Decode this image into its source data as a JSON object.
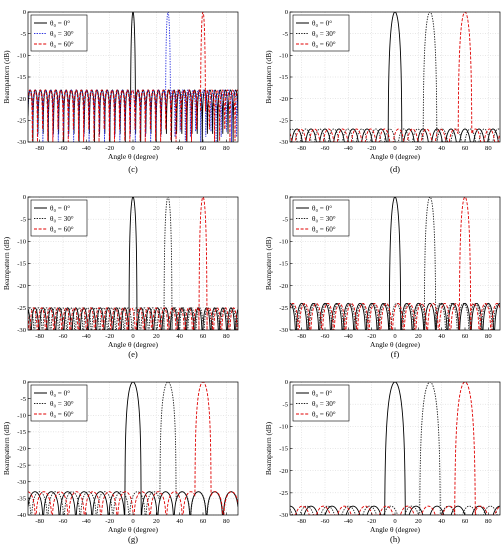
{
  "figure_title": "",
  "colors": {
    "s0": "#000000",
    "s30_dark": "#202020",
    "s30_blue": "#2c33e0",
    "s60": "#e00000",
    "grid": "#cfcfcf"
  },
  "chart_data": [
    {
      "type": "line",
      "caption": "(c)",
      "xlabel": "Angle θ (degree)",
      "ylabel": "Beampattern (dB)",
      "xlim": [
        -90,
        90
      ],
      "ylim": [
        -30,
        0
      ],
      "xticks": [
        -80,
        -60,
        -40,
        -20,
        0,
        20,
        40,
        60,
        80
      ],
      "yticks": [
        0,
        -5,
        -10,
        -15,
        -20,
        -25,
        -30
      ],
      "grid": true,
      "legend_position": "top-left",
      "floor_db": -30,
      "sidelobe_level_db": -18,
      "mainlobe_halfwidth_deg": 2.2,
      "series": [
        {
          "name": "θ₀ = 0°",
          "peak_deg": 0,
          "style": "solid",
          "color_key": "s0"
        },
        {
          "name": "θ₀ = 30°",
          "peak_deg": 30,
          "style": "dotted",
          "color_key": "s30_blue"
        },
        {
          "name": "θ₀ = 60°",
          "peak_deg": 60,
          "style": "dashed",
          "color_key": "s60"
        }
      ]
    },
    {
      "type": "line",
      "caption": "(d)",
      "xlabel": "Angle θ (degree)",
      "ylabel": "Beampattern (dB)",
      "xlim": [
        -90,
        90
      ],
      "ylim": [
        -30,
        0
      ],
      "xticks": [
        -80,
        -60,
        -40,
        -20,
        0,
        20,
        40,
        60,
        80
      ],
      "yticks": [
        0,
        -5,
        -10,
        -15,
        -20,
        -25,
        -30
      ],
      "grid": true,
      "legend_position": "top-left",
      "floor_db": -30,
      "sidelobe_level_db": -27,
      "mainlobe_halfwidth_deg": 6,
      "series": [
        {
          "name": "θ₀ = 0°",
          "peak_deg": 0,
          "style": "solid",
          "color_key": "s0"
        },
        {
          "name": "θ₀ = 30°",
          "peak_deg": 30,
          "style": "dotted",
          "color_key": "s30_dark"
        },
        {
          "name": "θ₀ = 60°",
          "peak_deg": 60,
          "style": "dashed",
          "color_key": "s60"
        }
      ]
    },
    {
      "type": "line",
      "caption": "(e)",
      "xlabel": "Angle θ (degree)",
      "ylabel": "Beampattern (dB)",
      "xlim": [
        -90,
        90
      ],
      "ylim": [
        -30,
        0
      ],
      "xticks": [
        -80,
        -60,
        -40,
        -20,
        0,
        20,
        40,
        60,
        80
      ],
      "yticks": [
        0,
        -5,
        -10,
        -15,
        -20,
        -25,
        -30
      ],
      "grid": true,
      "legend_position": "top-left",
      "floor_db": -30,
      "sidelobe_level_db": -25,
      "mainlobe_halfwidth_deg": 3.5,
      "series": [
        {
          "name": "θ₀ = 0°",
          "peak_deg": 0,
          "style": "solid",
          "color_key": "s0"
        },
        {
          "name": "θ₀ = 30°",
          "peak_deg": 30,
          "style": "dotted",
          "color_key": "s30_dark"
        },
        {
          "name": "θ₀ = 60°",
          "peak_deg": 60,
          "style": "dashed",
          "color_key": "s60"
        }
      ]
    },
    {
      "type": "line",
      "caption": "(f)",
      "xlabel": "Angle θ (degree)",
      "ylabel": "Beampattern (dB)",
      "xlim": [
        -90,
        90
      ],
      "ylim": [
        -30,
        0
      ],
      "xticks": [
        -80,
        -60,
        -40,
        -20,
        0,
        20,
        40,
        60,
        80
      ],
      "yticks": [
        0,
        -5,
        -10,
        -15,
        -20,
        -25,
        -30
      ],
      "grid": true,
      "legend_position": "top-left",
      "floor_db": -30,
      "sidelobe_level_db": -24,
      "mainlobe_halfwidth_deg": 5,
      "series": [
        {
          "name": "θ₀ = 0°",
          "peak_deg": 0,
          "style": "solid",
          "color_key": "s0"
        },
        {
          "name": "θ₀ = 30°",
          "peak_deg": 30,
          "style": "dotted",
          "color_key": "s30_dark"
        },
        {
          "name": "θ₀ = 60°",
          "peak_deg": 60,
          "style": "dashed",
          "color_key": "s60"
        }
      ]
    },
    {
      "type": "line",
      "caption": "(g)",
      "xlabel": "Angle θ (degree)",
      "ylabel": "Beampattern (dB)",
      "xlim": [
        -90,
        90
      ],
      "ylim": [
        -40,
        0
      ],
      "xticks": [
        -80,
        -60,
        -40,
        -20,
        0,
        20,
        40,
        60,
        80
      ],
      "yticks": [
        0,
        -5,
        -10,
        -15,
        -20,
        -25,
        -30,
        -35,
        -40
      ],
      "grid": true,
      "legend_position": "top-left",
      "floor_db": -40,
      "sidelobe_level_db": -33,
      "mainlobe_halfwidth_deg": 7,
      "series": [
        {
          "name": "θ₀ = 0°",
          "peak_deg": 0,
          "style": "solid",
          "color_key": "s0"
        },
        {
          "name": "θ₀ = 30°",
          "peak_deg": 30,
          "style": "dotted",
          "color_key": "s30_dark"
        },
        {
          "name": "θ₀ = 60°",
          "peak_deg": 60,
          "style": "dashed",
          "color_key": "s60"
        }
      ]
    },
    {
      "type": "line",
      "caption": "(h)",
      "xlabel": "Angle θ (degree)",
      "ylabel": "Beampattern (dB)",
      "xlim": [
        -90,
        90
      ],
      "ylim": [
        -30,
        0
      ],
      "xticks": [
        -80,
        -60,
        -40,
        -20,
        0,
        20,
        40,
        60,
        80
      ],
      "yticks": [
        0,
        -5,
        -10,
        -15,
        -20,
        -25,
        -30
      ],
      "grid": true,
      "legend_position": "top-left",
      "floor_db": -30,
      "sidelobe_level_db": -28,
      "mainlobe_halfwidth_deg": 9,
      "series": [
        {
          "name": "θ₀ = 0°",
          "peak_deg": 0,
          "style": "solid",
          "color_key": "s0"
        },
        {
          "name": "θ₀ = 30°",
          "peak_deg": 30,
          "style": "dotted",
          "color_key": "s30_dark"
        },
        {
          "name": "θ₀ = 60°",
          "peak_deg": 60,
          "style": "dashed",
          "color_key": "s60"
        }
      ]
    }
  ]
}
